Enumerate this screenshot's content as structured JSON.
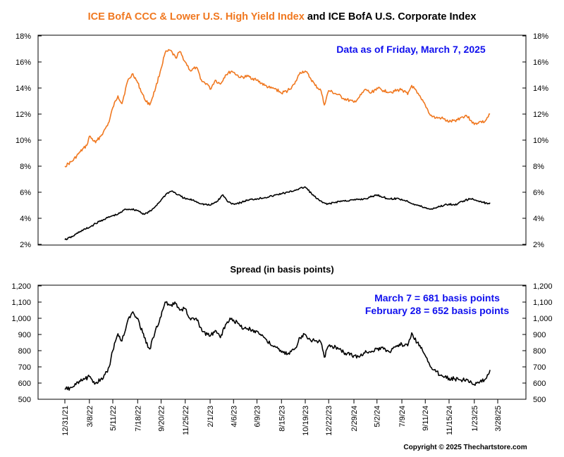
{
  "title": {
    "part1": "ICE BofA CCC & Lower U.S. High Yield Index",
    "part2": " and ICE BofA U.S. Corporate Index",
    "part1_color": "#f07820",
    "part2_color": "#000000"
  },
  "annotation_top": "Data as of Friday, March 7, 2025",
  "annotation_bottom_line1": "March 7 = 681 basis points",
  "annotation_bottom_line2": "February 28 = 652 basis points",
  "annotation_color": "#1010ee",
  "spread_title": "Spread (in basis points)",
  "copyright": "Copyright © 2025 Thechartstore.com",
  "chart_data": [
    {
      "type": "line",
      "title": "ICE BofA CCC & Lower U.S. High Yield Index and ICE BofA U.S. Corporate Index",
      "ylim": [
        2,
        18
      ],
      "y_ticks": [
        "2%",
        "4%",
        "6%",
        "8%",
        "10%",
        "12%",
        "14%",
        "16%",
        "18%"
      ],
      "y_tick_values": [
        2,
        4,
        6,
        8,
        10,
        12,
        14,
        16,
        18
      ],
      "grid": false,
      "series": [
        {
          "name": "ICE BofA CCC & Lower U.S. High Yield Index",
          "color": "#f07820",
          "points": [
            [
              "12/31/21",
              8.0
            ],
            [
              "1/21/22",
              8.4
            ],
            [
              "2/11/22",
              9.1
            ],
            [
              "3/1/22",
              9.6
            ],
            [
              "3/8/22",
              10.3
            ],
            [
              "3/25/22",
              9.8
            ],
            [
              "4/15/22",
              10.6
            ],
            [
              "5/1/22",
              11.4
            ],
            [
              "5/11/22",
              12.5
            ],
            [
              "5/25/22",
              13.4
            ],
            [
              "6/5/22",
              12.8
            ],
            [
              "6/20/22",
              14.5
            ],
            [
              "7/5/22",
              15.1
            ],
            [
              "7/18/22",
              14.4
            ],
            [
              "8/5/22",
              13.2
            ],
            [
              "8/20/22",
              12.7
            ],
            [
              "9/5/22",
              14.0
            ],
            [
              "9/20/22",
              15.5
            ],
            [
              "10/1/22",
              16.7
            ],
            [
              "10/15/22",
              16.9
            ],
            [
              "10/30/22",
              16.3
            ],
            [
              "11/10/22",
              16.8
            ],
            [
              "11/25/22",
              16.0
            ],
            [
              "12/10/22",
              15.3
            ],
            [
              "12/25/22",
              15.6
            ],
            [
              "1/10/23",
              14.5
            ],
            [
              "1/25/23",
              14.3
            ],
            [
              "2/1/23",
              13.9
            ],
            [
              "2/15/23",
              14.6
            ],
            [
              "3/1/23",
              14.3
            ],
            [
              "3/15/23",
              15.0
            ],
            [
              "4/1/23",
              15.3
            ],
            [
              "4/6/23",
              15.2
            ],
            [
              "4/25/23",
              14.8
            ],
            [
              "5/15/23",
              14.9
            ],
            [
              "6/9/23",
              14.6
            ],
            [
              "6/30/23",
              14.2
            ],
            [
              "7/15/23",
              14.0
            ],
            [
              "8/1/23",
              13.9
            ],
            [
              "8/15/23",
              13.6
            ],
            [
              "9/1/23",
              13.8
            ],
            [
              "9/20/23",
              14.3
            ],
            [
              "10/5/23",
              15.2
            ],
            [
              "10/19/23",
              15.3
            ],
            [
              "11/1/23",
              14.8
            ],
            [
              "11/15/23",
              14.2
            ],
            [
              "12/1/23",
              13.8
            ],
            [
              "12/10/23",
              12.7
            ],
            [
              "12/22/23",
              13.8
            ],
            [
              "1/15/24",
              13.5
            ],
            [
              "2/1/24",
              13.2
            ],
            [
              "2/29/24",
              12.9
            ],
            [
              "3/15/24",
              13.3
            ],
            [
              "4/1/24",
              13.9
            ],
            [
              "4/15/24",
              13.6
            ],
            [
              "5/2/24",
              14.0
            ],
            [
              "5/20/24",
              13.8
            ],
            [
              "6/10/24",
              13.7
            ],
            [
              "7/9/24",
              13.9
            ],
            [
              "7/25/24",
              13.5
            ],
            [
              "8/5/24",
              14.2
            ],
            [
              "8/20/24",
              13.6
            ],
            [
              "9/1/24",
              13.1
            ],
            [
              "9/11/24",
              12.7
            ],
            [
              "9/25/24",
              11.9
            ],
            [
              "10/10/24",
              11.7
            ],
            [
              "10/25/24",
              11.7
            ],
            [
              "11/15/24",
              11.4
            ],
            [
              "12/1/24",
              11.5
            ],
            [
              "12/15/24",
              11.7
            ],
            [
              "1/1/25",
              11.9
            ],
            [
              "1/15/25",
              11.5
            ],
            [
              "1/23/25",
              11.2
            ],
            [
              "2/5/25",
              11.4
            ],
            [
              "2/20/25",
              11.4
            ],
            [
              "3/7/25",
              12.0
            ]
          ]
        },
        {
          "name": "ICE BofA U.S. Corporate Index",
          "color": "#000000",
          "points": [
            [
              "12/31/21",
              2.35
            ],
            [
              "1/21/22",
              2.6
            ],
            [
              "2/11/22",
              3.0
            ],
            [
              "3/8/22",
              3.3
            ],
            [
              "3/25/22",
              3.6
            ],
            [
              "4/15/22",
              3.9
            ],
            [
              "5/11/22",
              4.2
            ],
            [
              "5/25/22",
              4.3
            ],
            [
              "6/15/22",
              4.7
            ],
            [
              "7/1/22",
              4.7
            ],
            [
              "7/18/22",
              4.6
            ],
            [
              "8/5/22",
              4.3
            ],
            [
              "8/25/22",
              4.6
            ],
            [
              "9/20/22",
              5.4
            ],
            [
              "10/5/22",
              5.9
            ],
            [
              "10/20/22",
              6.1
            ],
            [
              "11/5/22",
              5.8
            ],
            [
              "11/25/22",
              5.5
            ],
            [
              "12/15/22",
              5.4
            ],
            [
              "1/10/23",
              5.1
            ],
            [
              "2/1/23",
              5.0
            ],
            [
              "2/20/23",
              5.3
            ],
            [
              "3/8/23",
              5.8
            ],
            [
              "3/20/23",
              5.3
            ],
            [
              "4/6/23",
              5.1
            ],
            [
              "4/25/23",
              5.2
            ],
            [
              "5/15/23",
              5.4
            ],
            [
              "6/9/23",
              5.5
            ],
            [
              "7/1/23",
              5.6
            ],
            [
              "7/20/23",
              5.7
            ],
            [
              "8/15/23",
              5.9
            ],
            [
              "9/5/23",
              6.0
            ],
            [
              "9/25/23",
              6.2
            ],
            [
              "10/19/23",
              6.4
            ],
            [
              "11/5/23",
              5.9
            ],
            [
              "11/20/23",
              5.5
            ],
            [
              "12/5/23",
              5.2
            ],
            [
              "12/22/23",
              5.1
            ],
            [
              "1/20/24",
              5.3
            ],
            [
              "2/29/24",
              5.4
            ],
            [
              "4/1/24",
              5.5
            ],
            [
              "5/2/24",
              5.8
            ],
            [
              "6/1/24",
              5.5
            ],
            [
              "7/1/24",
              5.5
            ],
            [
              "7/25/24",
              5.3
            ],
            [
              "8/10/24",
              5.1
            ],
            [
              "9/11/24",
              4.8
            ],
            [
              "9/25/24",
              4.7
            ],
            [
              "10/20/24",
              4.9
            ],
            [
              "11/15/24",
              5.1
            ],
            [
              "12/1/24",
              5.0
            ],
            [
              "12/20/24",
              5.3
            ],
            [
              "1/13/25",
              5.5
            ],
            [
              "1/23/25",
              5.4
            ],
            [
              "2/10/25",
              5.3
            ],
            [
              "2/28/25",
              5.1
            ],
            [
              "3/7/25",
              5.2
            ]
          ]
        }
      ]
    },
    {
      "type": "line",
      "title": "Spread (in basis points)",
      "ylim": [
        500,
        1200
      ],
      "y_ticks": [
        "500",
        "600",
        "700",
        "800",
        "900",
        "1,000",
        "1,100",
        "1,200"
      ],
      "y_tick_values": [
        500,
        600,
        700,
        800,
        900,
        1000,
        1100,
        1200
      ],
      "x_ticks": [
        "12/31/21",
        "3/8/22",
        "5/11/22",
        "7/18/22",
        "9/20/22",
        "11/25/22",
        "2/1/23",
        "4/6/23",
        "6/9/23",
        "8/15/23",
        "10/19/23",
        "12/22/23",
        "2/29/24",
        "5/2/24",
        "7/9/24",
        "9/11/24",
        "11/15/24",
        "1/23/25",
        "3/28/25"
      ],
      "grid": false,
      "series": [
        {
          "name": "Spread",
          "color": "#000000",
          "points": [
            [
              "12/31/21",
              560
            ],
            [
              "1/21/22",
              575
            ],
            [
              "2/11/22",
              610
            ],
            [
              "3/8/22",
              640
            ],
            [
              "3/25/22",
              600
            ],
            [
              "4/15/22",
              630
            ],
            [
              "5/1/22",
              700
            ],
            [
              "5/11/22",
              800
            ],
            [
              "5/25/22",
              905
            ],
            [
              "6/5/22",
              860
            ],
            [
              "6/20/22",
              980
            ],
            [
              "7/5/22",
              1040
            ],
            [
              "7/18/22",
              1000
            ],
            [
              "8/5/22",
              880
            ],
            [
              "8/20/22",
              810
            ],
            [
              "9/5/22",
              930
            ],
            [
              "9/20/22",
              1010
            ],
            [
              "10/1/22",
              1100
            ],
            [
              "10/15/22",
              1080
            ],
            [
              "10/30/22",
              1090
            ],
            [
              "11/10/22",
              1050
            ],
            [
              "11/25/22",
              1060
            ],
            [
              "12/10/22",
              990
            ],
            [
              "12/25/22",
              1000
            ],
            [
              "1/10/23",
              920
            ],
            [
              "1/25/23",
              900
            ],
            [
              "2/1/23",
              890
            ],
            [
              "2/15/23",
              925
            ],
            [
              "3/1/23",
              880
            ],
            [
              "3/15/23",
              960
            ],
            [
              "4/1/23",
              1000
            ],
            [
              "4/6/23",
              990
            ],
            [
              "4/25/23",
              950
            ],
            [
              "5/15/23",
              935
            ],
            [
              "6/9/23",
              920
            ],
            [
              "6/30/23",
              880
            ],
            [
              "7/15/23",
              840
            ],
            [
              "8/1/23",
              820
            ],
            [
              "8/15/23",
              790
            ],
            [
              "9/1/23",
              780
            ],
            [
              "9/20/23",
              810
            ],
            [
              "10/5/23",
              880
            ],
            [
              "10/19/23",
              900
            ],
            [
              "11/1/23",
              870
            ],
            [
              "11/15/23",
              860
            ],
            [
              "12/1/23",
              850
            ],
            [
              "12/10/23",
              760
            ],
            [
              "12/22/23",
              830
            ],
            [
              "1/15/24",
              820
            ],
            [
              "2/1/24",
              790
            ],
            [
              "2/29/24",
              770
            ],
            [
              "3/15/24",
              760
            ],
            [
              "4/1/24",
              800
            ],
            [
              "4/15/24",
              790
            ],
            [
              "5/2/24",
              810
            ],
            [
              "5/20/24",
              810
            ],
            [
              "6/10/24",
              800
            ],
            [
              "7/9/24",
              840
            ],
            [
              "7/25/24",
              830
            ],
            [
              "8/5/24",
              910
            ],
            [
              "8/20/24",
              850
            ],
            [
              "9/1/24",
              820
            ],
            [
              "9/11/24",
              770
            ],
            [
              "9/25/24",
              700
            ],
            [
              "10/10/24",
              670
            ],
            [
              "10/25/24",
              650
            ],
            [
              "11/15/24",
              630
            ],
            [
              "12/1/24",
              625
            ],
            [
              "12/15/24",
              620
            ],
            [
              "1/1/25",
              625
            ],
            [
              "1/15/25",
              605
            ],
            [
              "1/23/25",
              590
            ],
            [
              "2/5/25",
              600
            ],
            [
              "2/20/25",
              620
            ],
            [
              "2/28/25",
              652
            ],
            [
              "3/7/25",
              681
            ]
          ]
        }
      ]
    }
  ]
}
